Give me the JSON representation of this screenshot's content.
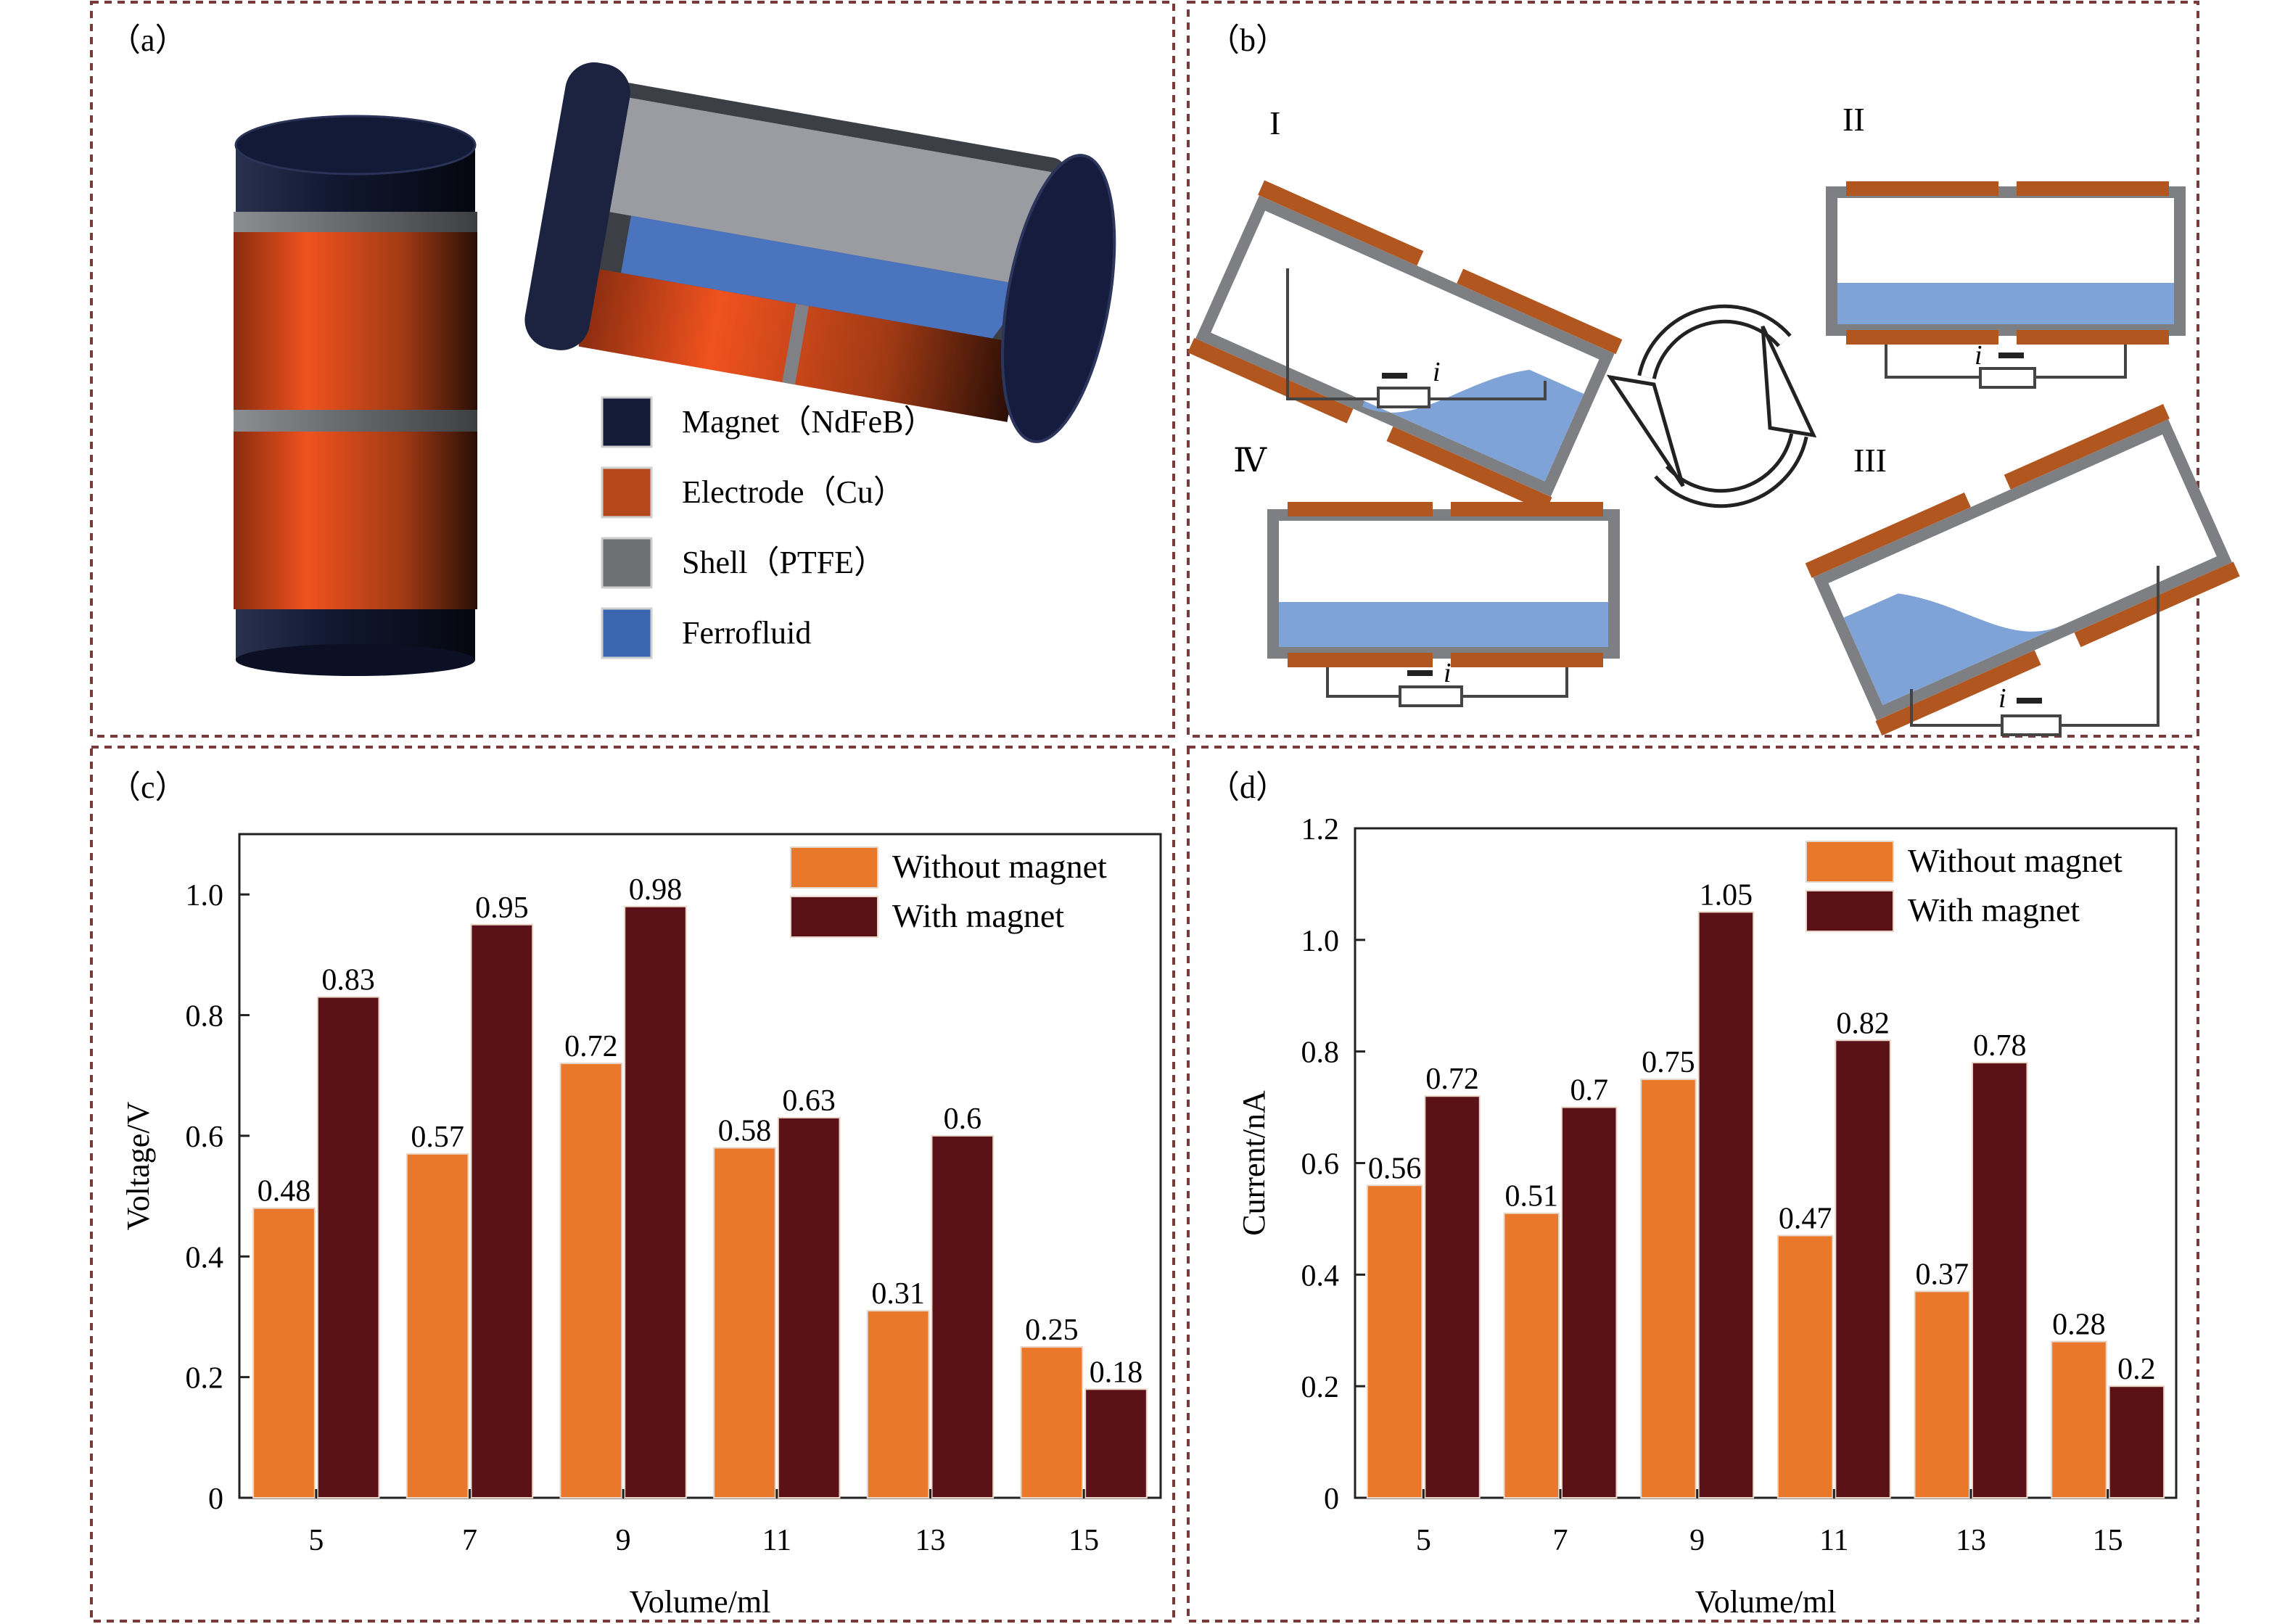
{
  "panels": {
    "a": {
      "label": "（a）",
      "legend": [
        {
          "label": "Magnet（NdFeB）",
          "color": "#151c38"
        },
        {
          "label": "Electrode（Cu）",
          "color": "#b5471c"
        },
        {
          "label": "Shell（PTFE）",
          "color": "#6d6f73"
        },
        {
          "label": "Ferrofluid",
          "color": "#3a67b0"
        }
      ]
    },
    "b": {
      "label": "（b）",
      "stages": [
        "I",
        "II",
        "III",
        "Ⅳ"
      ],
      "current_symbol": "i"
    },
    "c": {
      "label": "（c）"
    },
    "d": {
      "label": "（d）"
    }
  },
  "colors": {
    "without_magnet": "#e9782a",
    "with_magnet": "#5a1218",
    "frame": "#7a3a3a"
  },
  "chart_data": [
    {
      "id": "c",
      "type": "bar",
      "categories": [
        "5",
        "7",
        "9",
        "11",
        "13",
        "15"
      ],
      "series": [
        {
          "name": "Without magnet",
          "values": [
            0.48,
            0.57,
            0.72,
            0.58,
            0.31,
            0.25
          ],
          "labels": [
            "0.48",
            "0.57",
            "0.72",
            "0.58",
            "0.31",
            "0.25"
          ]
        },
        {
          "name": "With magnet",
          "values": [
            0.83,
            0.95,
            0.98,
            0.63,
            0.6,
            0.18
          ],
          "labels": [
            "0.83",
            "0.95",
            "0.98",
            "0.63",
            "0.6",
            "0.18"
          ]
        }
      ],
      "xlabel": "Volume/ml",
      "ylabel": "Voltage/V",
      "ylim": [
        0,
        1.1
      ],
      "yticks": [
        "0",
        "0.2",
        "0.4",
        "0.6",
        "0.8",
        "1.0"
      ],
      "legend_position": "top-right",
      "grid": false
    },
    {
      "id": "d",
      "type": "bar",
      "categories": [
        "5",
        "7",
        "9",
        "11",
        "13",
        "15"
      ],
      "series": [
        {
          "name": "Without magnet",
          "values": [
            0.56,
            0.51,
            0.75,
            0.47,
            0.37,
            0.28
          ],
          "labels": [
            "0.56",
            "0.51",
            "0.75",
            "0.47",
            "0.37",
            "0.28"
          ]
        },
        {
          "name": "With magnet",
          "values": [
            0.72,
            0.7,
            1.05,
            0.82,
            0.78,
            0.2
          ],
          "labels": [
            "0.72",
            "0.7",
            "1.05",
            "0.82",
            "0.78",
            "0.2"
          ]
        }
      ],
      "xlabel": "Volume/ml",
      "ylabel": "Current/nA",
      "ylim": [
        0,
        1.2
      ],
      "yticks": [
        "0",
        "0.2",
        "0.4",
        "0.6",
        "0.8",
        "1.0",
        "1.2"
      ],
      "legend_position": "top-right",
      "grid": false
    }
  ]
}
